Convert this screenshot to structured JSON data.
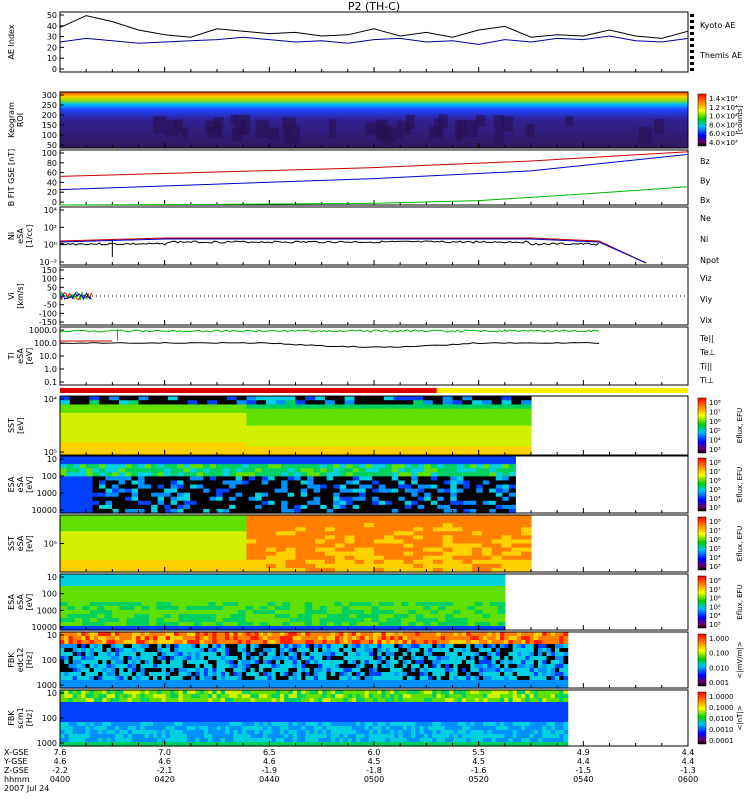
{
  "title": "P2 (TH-C)",
  "footer": {
    "row_labels": [
      "X-GSE",
      "Y-GSE",
      "Z-GSE",
      "hhmm",
      "2007 Jul 24"
    ],
    "times": [
      "0400",
      "0420",
      "0440",
      "0500",
      "0520",
      "0540",
      "0600"
    ],
    "x_gse": [
      "7.6",
      "7.0",
      "6.5",
      "6.0",
      "5.5",
      "4.9",
      "4.4"
    ],
    "y_gse": [
      "4.6",
      "4.6",
      "4.6",
      "4.5",
      "4.5",
      "4.4",
      "4.4"
    ],
    "z_gse": [
      "-2.2",
      "-2.1",
      "-1.9",
      "-1.8",
      "-1.6",
      "-1.5",
      "-1.3"
    ]
  },
  "bar": {
    "red_fraction": 0.6,
    "colors": {
      "red": "#dd0000",
      "yellow": "#ffee00"
    }
  },
  "chart_data": [
    {
      "type": "line",
      "panel": "AE",
      "ylabel": "AE Index",
      "yticks": [
        "0",
        "10",
        "20",
        "30",
        "40",
        "50"
      ],
      "ylim": [
        0,
        50
      ],
      "series": [
        {
          "name": "Kyoto AE",
          "color": "#000099",
          "x": [
            0,
            5,
            10,
            15,
            20,
            25,
            30,
            35,
            40,
            45,
            50,
            55,
            60,
            65,
            70,
            75,
            80,
            85,
            90,
            95,
            100,
            105,
            110,
            115,
            120
          ],
          "y": [
            25,
            28,
            26,
            24,
            25,
            26,
            27,
            29,
            27,
            25,
            26,
            24,
            27,
            28,
            25,
            26,
            23,
            27,
            25,
            28,
            27,
            30,
            26,
            25,
            28
          ]
        },
        {
          "name": "Themis AE",
          "color": "#000000",
          "x": [
            0,
            5,
            10,
            15,
            20,
            25,
            30,
            35,
            40,
            45,
            50,
            55,
            60,
            65,
            70,
            75,
            80,
            85,
            90,
            95,
            100,
            105,
            110,
            115,
            120
          ],
          "y": [
            37,
            47,
            42,
            35,
            31,
            29,
            36,
            34,
            32,
            33,
            30,
            31,
            36,
            30,
            33,
            29,
            35,
            38,
            29,
            31,
            30,
            35,
            30,
            28,
            34
          ]
        }
      ]
    },
    {
      "type": "heatmap",
      "panel": "keogram",
      "ylabel": "Keogram",
      "ylabel2": "ROI",
      "yticks": [
        "50",
        "100",
        "150",
        "200",
        "250",
        "300"
      ],
      "colorbar_label": "[counts]",
      "colorbar_ticks": [
        "1.4×10⁴",
        "1.2×10⁴",
        "1.0×10⁴",
        "8.0×10³",
        "6.0×10³",
        "4.0×10³"
      ]
    },
    {
      "type": "line",
      "panel": "B",
      "ylabel": "B FIT GSE [nT]",
      "yticks": [
        "0",
        "20",
        "40",
        "60",
        "80",
        "100"
      ],
      "ylim": [
        0,
        100
      ],
      "series": [
        {
          "name": "Bz",
          "color": "#cc0000",
          "x": [
            0,
            30,
            60,
            90,
            120
          ],
          "y": [
            52,
            60,
            68,
            80,
            97
          ]
        },
        {
          "name": "By",
          "color": "#00bb00",
          "x": [
            0,
            30,
            60,
            80,
            100,
            120
          ],
          "y": [
            0,
            1,
            3,
            8,
            20,
            33
          ]
        },
        {
          "name": "Bx",
          "color": "#0000cc",
          "x": [
            0,
            30,
            60,
            90,
            120
          ],
          "y": [
            28,
            38,
            48,
            62,
            92
          ]
        }
      ]
    },
    {
      "type": "line",
      "panel": "density",
      "ylabel": "Ni",
      "ylabel2": "eSA",
      "ylabel3": "[1/cc]",
      "yticks": [
        "10⁻²",
        "10⁰",
        "10²",
        "10⁴"
      ],
      "series": [
        {
          "name": "Ne",
          "color": "#cc0000"
        },
        {
          "name": "Ni",
          "color": "#000000"
        },
        {
          "name": "Npot",
          "color": "#0000cc"
        }
      ]
    },
    {
      "type": "line",
      "panel": "velocity",
      "ylabel": "Vi",
      "ylabel3": "[km/s]",
      "yticks": [
        "150",
        "100",
        "50",
        "0",
        "-50",
        "-100",
        "-150"
      ],
      "ylim": [
        -150,
        150
      ],
      "series": [
        {
          "name": "Viz",
          "color": "#cc0000"
        },
        {
          "name": "Viy",
          "color": "#00bb00"
        },
        {
          "name": "Vix",
          "color": "#0000cc"
        }
      ]
    },
    {
      "type": "line",
      "panel": "temperature",
      "ylabel": "Ti",
      "ylabel2": "eSA",
      "ylabel3": "[eV]",
      "yticks": [
        "1000.0",
        "100.0",
        "10.0",
        "1.0",
        "0.1"
      ],
      "series": [
        {
          "name": "Te||",
          "color": "#000000"
        },
        {
          "name": "Te⊥",
          "color": "#cc0000"
        },
        {
          "name": "Ti||",
          "color": "#00bb00"
        },
        {
          "name": "Ti⊥",
          "color": "#0000cc"
        }
      ]
    },
    {
      "type": "heatmap",
      "panel": "sst-e",
      "ylabel": "SST",
      "ylabel3": "[eV]",
      "yticks": [
        "10⁵",
        "10⁴"
      ],
      "colorbar_label": "Eflux, EFU",
      "colorbar_ticks": [
        "10⁸",
        "10⁷",
        "10⁶",
        "10⁵",
        "10⁴",
        "10³"
      ]
    },
    {
      "type": "heatmap",
      "panel": "esa-e",
      "ylabel": "ESA",
      "ylabel2": "eSA",
      "ylabel3": "[eV]",
      "yticks": [
        "10000",
        "1000",
        "100",
        "10"
      ],
      "colorbar_label": "Eflux, EFU",
      "colorbar_ticks": [
        "10⁸",
        "10⁷",
        "10⁶",
        "10⁵",
        "10⁴",
        "10³"
      ]
    },
    {
      "type": "heatmap",
      "panel": "sst-i",
      "ylabel": "SST",
      "ylabel2": "eSA",
      "ylabel3": "[eV]",
      "yticks": [
        "10⁵"
      ],
      "colorbar_label": "Eflux, EFU",
      "colorbar_ticks": [
        "10⁸",
        "10⁷",
        "10⁶",
        "10⁵",
        "10⁴",
        "10³"
      ]
    },
    {
      "type": "heatmap",
      "panel": "esa-i",
      "ylabel": "ESA",
      "ylabel2": "eSA",
      "ylabel3": "[eV]",
      "yticks": [
        "10000",
        "1000",
        "100",
        "10"
      ],
      "colorbar_label": "Eflux, EFU",
      "colorbar_ticks": [
        "10⁸",
        "10⁷",
        "10⁶",
        "10⁵",
        "10⁴",
        "10³"
      ]
    },
    {
      "type": "heatmap",
      "panel": "fbk-e",
      "ylabel": "FBK",
      "ylabel2": "edc12",
      "ylabel3": "[Hz]",
      "yticks": [
        "1000",
        "100",
        "10"
      ],
      "colorbar_label": "<|mV/m|>",
      "colorbar_ticks": [
        "1.000",
        "0.100",
        "0.010",
        "0.001"
      ]
    },
    {
      "type": "heatmap",
      "panel": "fbk-b",
      "ylabel": "FBK",
      "ylabel2": "scm1",
      "ylabel3": "[Hz]",
      "yticks": [
        "1000",
        "100",
        "10"
      ],
      "colorbar_label": "<|nT|>",
      "colorbar_ticks": [
        "1.0000",
        "0.1000",
        "0.0100",
        "0.0010",
        "0.0001"
      ]
    }
  ]
}
